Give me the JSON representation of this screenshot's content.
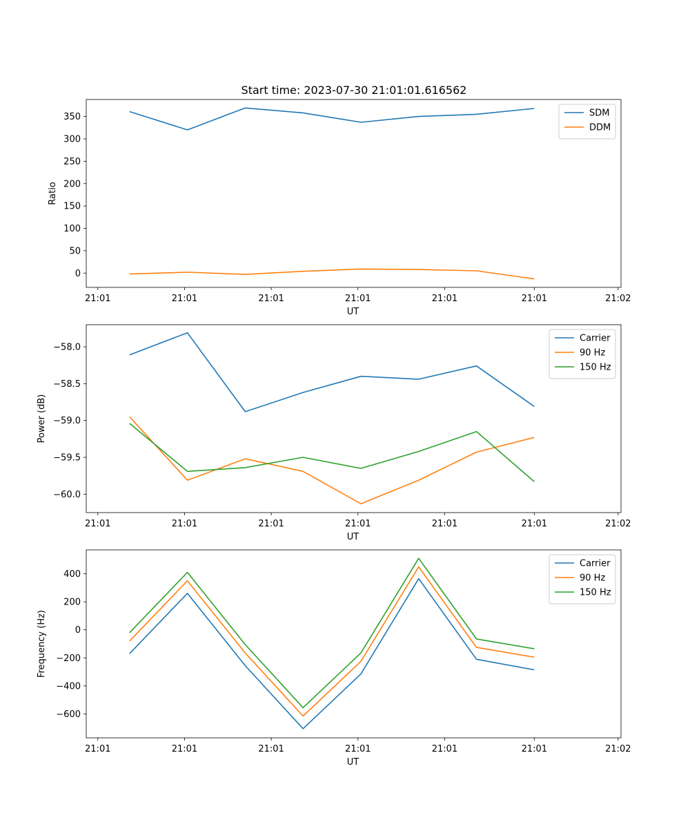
{
  "chart_data": [
    {
      "type": "line",
      "title": "Start time: 2023-07-30 21:01:01.616562",
      "xlabel": "UT",
      "ylabel": "Ratio",
      "x": [
        0,
        1,
        2,
        3,
        4,
        5,
        6,
        7
      ],
      "xlim": [
        -0.75,
        8.5
      ],
      "x_ticks": [
        -0.55,
        0.95,
        2.45,
        3.95,
        5.45,
        7.0,
        8.45
      ],
      "x_tick_labels": [
        "21:01",
        "21:01",
        "21:01",
        "21:01",
        "21:01",
        "21:01",
        "21:02"
      ],
      "ylim": [
        -32,
        388
      ],
      "y_ticks": [
        0,
        50,
        100,
        150,
        200,
        250,
        300,
        350
      ],
      "y_tick_labels": [
        "0",
        "50",
        "100",
        "150",
        "200",
        "250",
        "300",
        "350"
      ],
      "legend_position": "top-right",
      "series": [
        {
          "name": "SDM",
          "color": "#1f77b4",
          "values": [
            361,
            320,
            369,
            358,
            337,
            350,
            355,
            368
          ]
        },
        {
          "name": "DDM",
          "color": "#ff7f0e",
          "values": [
            -2,
            2,
            -3,
            4,
            9,
            8,
            5,
            -13
          ]
        }
      ]
    },
    {
      "type": "line",
      "title": "",
      "xlabel": "UT",
      "ylabel": "Power (dB)",
      "x": [
        0,
        1,
        2,
        3,
        4,
        5,
        6,
        7
      ],
      "xlim": [
        -0.75,
        8.5
      ],
      "x_ticks": [
        -0.55,
        0.95,
        2.45,
        3.95,
        5.45,
        7.0,
        8.45
      ],
      "x_tick_labels": [
        "21:01",
        "21:01",
        "21:01",
        "21:01",
        "21:01",
        "21:01",
        "21:02"
      ],
      "ylim": [
        -60.25,
        -57.7
      ],
      "y_ticks": [
        -60.0,
        -59.5,
        -59.0,
        -58.5,
        -58.0
      ],
      "y_tick_labels": [
        "−60.0",
        "−59.5",
        "−59.0",
        "−58.5",
        "−58.0"
      ],
      "legend_position": "top-right",
      "series": [
        {
          "name": "Carrier",
          "color": "#1f77b4",
          "values": [
            -58.11,
            -57.81,
            -58.88,
            -58.62,
            -58.4,
            -58.44,
            -58.26,
            -58.81
          ]
        },
        {
          "name": "90 Hz",
          "color": "#ff7f0e",
          "values": [
            -58.95,
            -59.81,
            -59.52,
            -59.69,
            -60.13,
            -59.81,
            -59.43,
            -59.23
          ]
        },
        {
          "name": "150 Hz",
          "color": "#2ca02c",
          "values": [
            -59.04,
            -59.69,
            -59.64,
            -59.5,
            -59.65,
            -59.42,
            -59.15,
            -59.83
          ]
        }
      ]
    },
    {
      "type": "line",
      "title": "",
      "xlabel": "UT",
      "ylabel": "Frequency (Hz)",
      "x": [
        0,
        1,
        2,
        3,
        4,
        5,
        6,
        7
      ],
      "xlim": [
        -0.75,
        8.5
      ],
      "x_ticks": [
        -0.55,
        0.95,
        2.45,
        3.95,
        5.45,
        7.0,
        8.45
      ],
      "x_tick_labels": [
        "21:01",
        "21:01",
        "21:01",
        "21:01",
        "21:01",
        "21:01",
        "21:02"
      ],
      "ylim": [
        -770,
        570
      ],
      "y_ticks": [
        -600,
        -400,
        -200,
        0,
        200,
        400
      ],
      "y_tick_labels": [
        "−600",
        "−400",
        "−200",
        "0",
        "200",
        "400"
      ],
      "legend_position": "top-right",
      "series": [
        {
          "name": "Carrier",
          "color": "#1f77b4",
          "values": [
            -170,
            260,
            -255,
            -705,
            -315,
            365,
            -210,
            -285
          ]
        },
        {
          "name": "90 Hz",
          "color": "#ff7f0e",
          "values": [
            -80,
            350,
            -165,
            -615,
            -225,
            450,
            -125,
            -195
          ]
        },
        {
          "name": "150 Hz",
          "color": "#2ca02c",
          "values": [
            -20,
            410,
            -105,
            -555,
            -165,
            510,
            -65,
            -135
          ]
        }
      ]
    }
  ]
}
